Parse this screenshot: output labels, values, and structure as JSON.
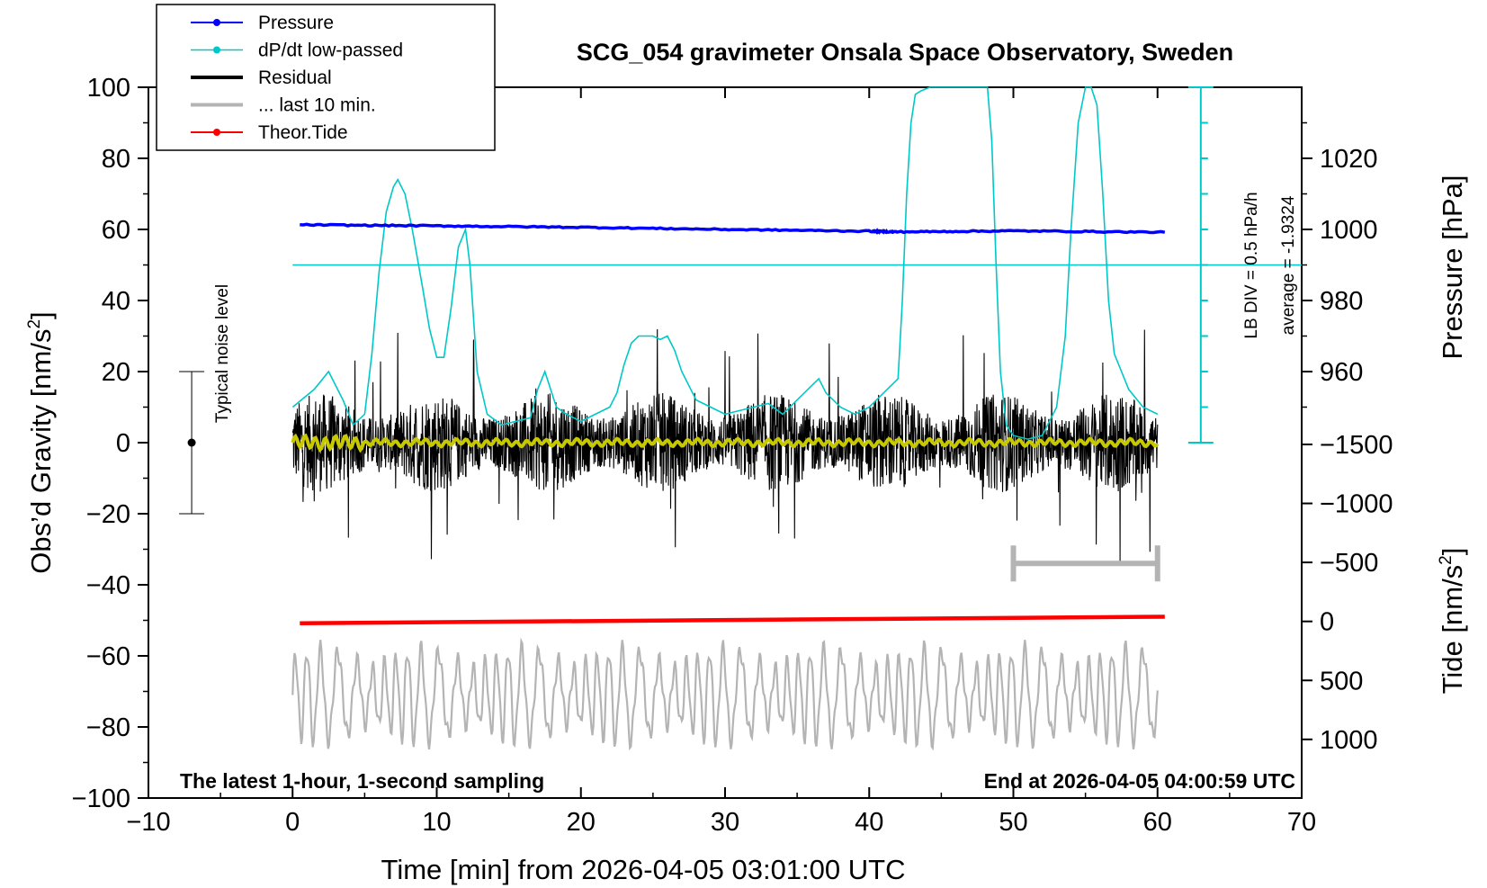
{
  "chart_data": {
    "type": "line",
    "title": "SCG_054 gravimeter Onsala Space Observatory, Sweden",
    "xlabel": "Time [min] from 2026-04-05 03:01:00 UTC",
    "ylabel_main": "Obs’d Gravity [nm/s",
    "ylabel_main_sup": "2",
    "ylabel_main_close": "]",
    "ylabel_pressure": "Pressure [hPa]",
    "ylabel_tide": "Tide [nm/s",
    "ylabel_tide_sup": "2",
    "ylabel_tide_close": "]",
    "xlim": [
      -10,
      70
    ],
    "ylim": [
      -100,
      100
    ],
    "x_ticks": [
      "−10",
      "0",
      "10",
      "20",
      "30",
      "40",
      "50",
      "60",
      "70"
    ],
    "x_tick_values": [
      -10,
      0,
      10,
      20,
      30,
      40,
      50,
      60,
      70
    ],
    "y_ticks": [
      "100",
      "80",
      "60",
      "40",
      "20",
      "0",
      "−20",
      "−40",
      "−60",
      "−80",
      "−100"
    ],
    "y_tick_values": [
      100,
      80,
      60,
      40,
      20,
      0,
      -20,
      -40,
      -60,
      -80,
      -100
    ],
    "pressure_axis": {
      "ticks": [
        "1020",
        "1000",
        "980",
        "960"
      ],
      "values": [
        1020,
        1000,
        980,
        960
      ],
      "left_ref_value": 1000,
      "left_ref_gravity": 60,
      "gravity_per_hPa": 1
    },
    "tide_axis": {
      "ticks": [
        "1000",
        "500",
        "0",
        "−500",
        "−1000",
        "−1500"
      ],
      "values": [
        1000,
        500,
        0,
        -500,
        -1000,
        -1500
      ],
      "gravity_at_zero": -50.3,
      "gravity_per_500": -16.6
    },
    "series": [
      {
        "name": "Pressure",
        "color": "#0000ff",
        "x": [
          0.5,
          10,
          20,
          30,
          40,
          42,
          50,
          60.5
        ],
        "y": [
          61.3,
          61.0,
          60.6,
          60.0,
          59.5,
          59.3,
          59.6,
          59.2
        ]
      },
      {
        "name": "dP/dt low-passed",
        "color": "#00c8c8",
        "average_line": 50,
        "x": [
          0,
          1.5,
          2.5,
          3.5,
          4.2,
          5.0,
          5.5,
          6.0,
          6.5,
          7.0,
          7.3,
          7.8,
          8.3,
          9.0,
          9.5,
          10.0,
          10.5,
          11.0,
          11.5,
          12.0,
          12.3,
          12.8,
          13.5,
          14.5,
          15.5,
          16.5,
          17.0,
          17.5,
          18.3,
          19.0,
          20.0,
          21.0,
          22.0,
          22.5,
          23.0,
          23.5,
          24.0,
          24.5,
          25.0,
          25.5,
          26.0,
          26.5,
          27.0,
          28.0,
          29.0,
          30.0,
          31.0,
          32.0,
          33.0,
          34.0,
          35.0,
          36.0,
          36.5,
          37.0,
          38.0,
          39.0,
          40.0,
          41.0,
          42.0,
          42.3,
          42.6,
          42.9,
          43.2,
          43.6,
          44.2,
          45.0,
          46.0,
          47.0,
          47.8,
          48.2,
          48.5,
          48.8,
          49.1,
          49.5,
          50.0,
          51.0,
          52.0,
          53.0,
          53.6,
          54.0,
          54.5,
          55.0,
          55.4,
          55.8,
          56.2,
          56.6,
          57.0,
          57.5,
          58.0,
          59.0,
          60.0
        ],
        "y": [
          10,
          15,
          20,
          12,
          5,
          8,
          25,
          48,
          65,
          72,
          74,
          70,
          60,
          44,
          32,
          24,
          24,
          38,
          55,
          60,
          50,
          20,
          8,
          5,
          6,
          7,
          15,
          20,
          10,
          8,
          6,
          8,
          10,
          14,
          22,
          28,
          30,
          30,
          30,
          29,
          30,
          26,
          20,
          12,
          10,
          8,
          9,
          10,
          11,
          8,
          12,
          16,
          18,
          14,
          10,
          8,
          10,
          14,
          18,
          40,
          70,
          90,
          98,
          99,
          100,
          100,
          100,
          100,
          100,
          100,
          85,
          50,
          20,
          5,
          2,
          1,
          2,
          10,
          30,
          60,
          90,
          100,
          100,
          95,
          70,
          40,
          25,
          20,
          15,
          10,
          8
        ]
      },
      {
        "name": "Residual",
        "color": "#000000",
        "x_range": [
          0,
          60
        ],
        "amplitude": 14,
        "min": -38,
        "max": 40
      },
      {
        "name": "... last 10 min.",
        "color": "#b4b4b4",
        "x_range": [
          50,
          60
        ],
        "level": -34
      },
      {
        "name": "Theor.Tide",
        "color": "#ff0000",
        "x": [
          0.5,
          60.5
        ],
        "y": [
          -50.8,
          -49.0
        ]
      },
      {
        "name": "Smoothed residual",
        "color": "#c8c800",
        "x_range": [
          0,
          60
        ],
        "level": 0
      }
    ],
    "bottom_trace": {
      "color": "#b4b4b4",
      "center": -71,
      "amplitude": 13,
      "x_range": [
        0,
        60
      ]
    },
    "noise_bar": {
      "x": -7,
      "center": 0,
      "low": -20,
      "high": 20,
      "label": "Typical noise level"
    },
    "pressure_scale": {
      "x": 63,
      "low": 0,
      "high": 100,
      "ticks": 10,
      "label1": "LB DIV = 0.5 hPa/h",
      "label2": "average = -1.9324"
    },
    "legend": [
      {
        "label": "Pressure",
        "color": "#0000ff",
        "marker": true,
        "width": 2
      },
      {
        "label": "dP/dt low-passed",
        "color": "#00c8c8",
        "marker": true,
        "width": 1.5
      },
      {
        "label": "Residual",
        "color": "#000000",
        "marker": false,
        "width": 4
      },
      {
        "label": "... last 10 min.",
        "color": "#b4b4b4",
        "marker": false,
        "width": 4
      },
      {
        "label": "Theor.Tide",
        "color": "#ff0000",
        "marker": true,
        "width": 2
      }
    ],
    "legend_position": "top-left",
    "note_left": "The latest 1-hour, 1-second sampling",
    "note_right": "End at 2026-04-05 04:00:59 UTC"
  }
}
